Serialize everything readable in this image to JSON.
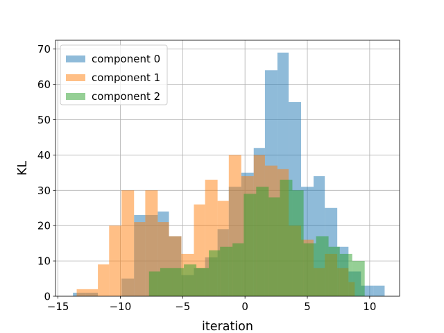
{
  "chart_data": {
    "type": "bar",
    "subtype": "histogram",
    "title": "",
    "xlabel": "iteration",
    "ylabel": "KL",
    "xlim": [
      -15.2,
      12.4
    ],
    "ylim": [
      0,
      72.5
    ],
    "xticks": [
      -15,
      -10,
      -5,
      0,
      5,
      10
    ],
    "xtick_labels": [
      "−15",
      "−10",
      "−5",
      "0",
      "5",
      "10"
    ],
    "yticks": [
      0,
      10,
      20,
      30,
      40,
      50,
      60,
      70
    ],
    "ytick_labels": [
      "0",
      "10",
      "20",
      "30",
      "40",
      "50",
      "60",
      "70"
    ],
    "grid": true,
    "legend_position": "top-left",
    "series": [
      {
        "name": "component 0",
        "color": "#1f77b4",
        "alpha": 0.5,
        "bins": [
          [
            -13.8,
            -12.8,
            1
          ],
          [
            -12.8,
            -11.8,
            1
          ],
          [
            -11.8,
            -10.9,
            0
          ],
          [
            -10.9,
            -9.9,
            0
          ],
          [
            -9.9,
            -8.9,
            5
          ],
          [
            -8.9,
            -8.0,
            23
          ],
          [
            -8.0,
            -7.0,
            23
          ],
          [
            -7.0,
            -6.1,
            24
          ],
          [
            -6.1,
            -5.1,
            17
          ],
          [
            -5.1,
            -4.1,
            6
          ],
          [
            -4.1,
            -3.2,
            8
          ],
          [
            -3.2,
            -2.2,
            11
          ],
          [
            -2.2,
            -1.3,
            19
          ],
          [
            -1.3,
            -0.3,
            31
          ],
          [
            -0.3,
            0.7,
            35
          ],
          [
            0.7,
            1.6,
            42
          ],
          [
            1.6,
            2.6,
            64
          ],
          [
            2.6,
            3.5,
            69
          ],
          [
            3.5,
            4.5,
            55
          ],
          [
            4.5,
            5.5,
            31
          ],
          [
            5.5,
            6.4,
            34
          ],
          [
            6.4,
            7.4,
            25
          ],
          [
            7.4,
            8.3,
            14
          ],
          [
            8.3,
            9.3,
            7
          ],
          [
            9.3,
            10.3,
            3
          ],
          [
            10.3,
            11.2,
            3
          ]
        ]
      },
      {
        "name": "component 1",
        "color": "#ff7f0e",
        "alpha": 0.5,
        "bins": [
          [
            -13.5,
            -11.8,
            2
          ],
          [
            -11.8,
            -10.9,
            9
          ],
          [
            -10.9,
            -9.9,
            20
          ],
          [
            -9.9,
            -8.9,
            30
          ],
          [
            -8.9,
            -8.0,
            21
          ],
          [
            -8.0,
            -7.0,
            30
          ],
          [
            -7.0,
            -6.1,
            21
          ],
          [
            -6.1,
            -5.1,
            17
          ],
          [
            -5.1,
            -4.1,
            12
          ],
          [
            -4.1,
            -3.2,
            26
          ],
          [
            -3.2,
            -2.2,
            33
          ],
          [
            -2.2,
            -1.3,
            27
          ],
          [
            -1.3,
            -0.3,
            40
          ],
          [
            -0.3,
            0.7,
            34
          ],
          [
            0.7,
            1.6,
            40
          ],
          [
            1.6,
            2.6,
            37
          ],
          [
            2.6,
            3.5,
            36
          ],
          [
            3.5,
            4.5,
            20
          ],
          [
            4.5,
            5.5,
            16
          ],
          [
            5.5,
            6.4,
            8
          ],
          [
            6.4,
            7.4,
            12
          ],
          [
            7.4,
            8.3,
            8
          ],
          [
            8.3,
            8.8,
            4
          ]
        ]
      },
      {
        "name": "component 2",
        "color": "#2ca02c",
        "alpha": 0.5,
        "bins": [
          [
            -7.7,
            -6.8,
            7
          ],
          [
            -6.8,
            -5.8,
            8
          ],
          [
            -5.8,
            -4.9,
            8
          ],
          [
            -4.9,
            -3.9,
            9
          ],
          [
            -3.9,
            -2.9,
            8
          ],
          [
            -2.9,
            -2.0,
            13
          ],
          [
            -2.0,
            -1.0,
            14
          ],
          [
            -1.0,
            -0.1,
            15
          ],
          [
            -0.1,
            0.9,
            29
          ],
          [
            0.9,
            1.9,
            31
          ],
          [
            1.9,
            2.8,
            28
          ],
          [
            2.8,
            3.8,
            33
          ],
          [
            3.8,
            4.7,
            30
          ],
          [
            4.7,
            5.7,
            15
          ],
          [
            5.7,
            6.7,
            17
          ],
          [
            6.7,
            7.6,
            14
          ],
          [
            7.6,
            8.6,
            12
          ],
          [
            8.6,
            9.6,
            10
          ]
        ]
      }
    ]
  }
}
